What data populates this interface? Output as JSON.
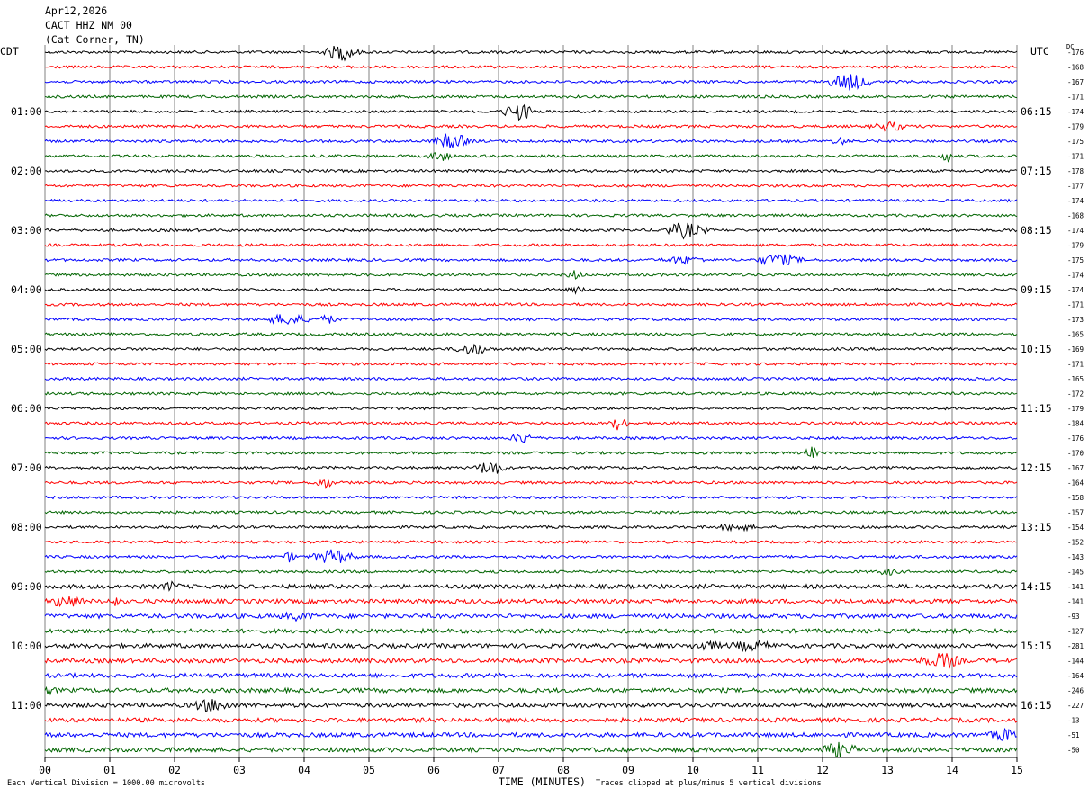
{
  "header": {
    "date": "Apr12,2026",
    "station": "CACT HHZ NM 00",
    "location": "(Cat Corner, TN)"
  },
  "left_tz": "CDT",
  "right_tz": "UTC",
  "dc_label": "DC",
  "footer": {
    "left": "Each Vertical Division = 1000.00 microvolts",
    "right": "Traces clipped at plus/minus 5 vertical divisions"
  },
  "colors": {
    "trace": [
      "#000000",
      "#ff0000",
      "#0000ff",
      "#006400"
    ],
    "grid": "#808080"
  },
  "chart_data": {
    "type": "line",
    "xlabel": "TIME (MINUTES)",
    "xlim": [
      0,
      15
    ],
    "x_ticks": [
      "00",
      "01",
      "02",
      "03",
      "04",
      "05",
      "06",
      "07",
      "08",
      "09",
      "10",
      "11",
      "12",
      "13",
      "14",
      "15"
    ],
    "trace_count": 48,
    "left_hour_labels": [
      "01:00",
      "02:00",
      "03:00",
      "04:00",
      "05:00",
      "06:00",
      "07:00",
      "08:00",
      "09:00",
      "10:00",
      "11:00"
    ],
    "right_hour_labels": [
      "06:15",
      "07:15",
      "08:15",
      "09:15",
      "10:15",
      "11:15",
      "12:15",
      "13:15",
      "14:15",
      "15:15",
      "16:15"
    ],
    "dc_offsets": [
      "-176",
      "-168",
      "-167",
      "-171",
      "-174",
      "-179",
      "-175",
      "-171",
      "-178",
      "-177",
      "-174",
      "-168",
      "-174",
      "-179",
      "-175",
      "-174",
      "-174",
      "-171",
      "-173",
      "-165",
      "-169",
      "-171",
      "-165",
      "-172",
      "-179",
      "-184",
      "-176",
      "-170",
      "-167",
      "-164",
      "-158",
      "-157",
      "-154",
      "-152",
      "-143",
      "-145",
      "-141",
      "-141",
      "-93",
      "-127",
      "-281",
      "-144",
      "-164",
      "-246",
      "-227",
      "-13",
      "-51",
      "-50"
    ]
  }
}
